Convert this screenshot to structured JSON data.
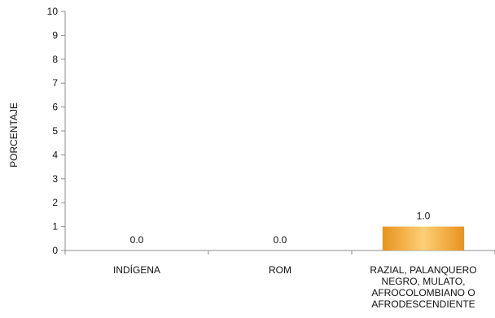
{
  "chart_data": {
    "type": "bar",
    "categories": [
      [
        "INDÍGENA"
      ],
      [
        "ROM"
      ],
      [
        "RAZIAL, PALANQUERO",
        "NEGRO, MULATO,",
        "AFROCOLOMBIANO O",
        "AFRODESCENDIENTE"
      ]
    ],
    "values": [
      0.0,
      0.0,
      1.0
    ],
    "data_labels": [
      "0.0",
      "0.0",
      "1.0"
    ],
    "title": "",
    "xlabel": "",
    "ylabel": "PORCENTAJE",
    "ylim": [
      0,
      10
    ],
    "yticks": [
      0,
      1,
      2,
      3,
      4,
      5,
      6,
      7,
      8,
      9,
      10
    ],
    "grid": false,
    "legend": "none",
    "colors": {
      "bar_light": "#fcd077",
      "bar_dark": "#e8921c",
      "axis": "#8c8c8c"
    }
  }
}
